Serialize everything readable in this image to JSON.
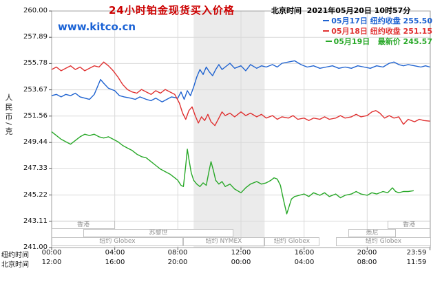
{
  "header": {
    "title": "24小时铂金现货买入价格",
    "datetime": "北京时间  2021年05月20日 10时57分"
  },
  "watermark": "www.kitco.cn",
  "legend": [
    {
      "text": "05月17日 纽约收盘 255.50",
      "color": "#1e62d0"
    },
    {
      "text": "05月18日 纽约收盘 251.15",
      "color": "#e03030"
    },
    {
      "text": "05月19日   最新价 245.57",
      "color": "#28a828"
    }
  ],
  "axis": {
    "y_unit": "人民币/克",
    "y_ticks": [
      "260.00",
      "257.89",
      "255.78",
      "253.67",
      "251.56",
      "249.44",
      "247.33",
      "245.22",
      "243.11",
      "241.00"
    ],
    "x_rows": [
      {
        "name": "纽约时间",
        "labels": [
          "00:00",
          "04:00",
          "08:00",
          "12:00",
          "16:00",
          "20:00",
          "23:59"
        ]
      },
      {
        "name": "北京时间",
        "labels": [
          "12:00",
          "16:00",
          "20:00",
          "00:00",
          "04:00",
          "08:00",
          "11:59"
        ]
      }
    ]
  },
  "sessions": [
    {
      "label": "香港",
      "row": 0,
      "start": 0,
      "end": 4
    },
    {
      "label": "香港",
      "row": 0,
      "start": 21.3,
      "end": 24
    },
    {
      "label": "苏黎世",
      "row": 1,
      "start": 2,
      "end": 11.5
    },
    {
      "label": "悉尼",
      "row": 1,
      "start": 18.8,
      "end": 21.8
    },
    {
      "label": "纽约 Globex",
      "row": 2,
      "start": 0,
      "end": 8.33
    },
    {
      "label": "纽约 NYMEX",
      "row": 2,
      "start": 8.33,
      "end": 13.5
    },
    {
      "label": "纽约 Globex",
      "row": 2,
      "start": 13.5,
      "end": 17
    },
    {
      "label": "纽约 Globex",
      "row": 2,
      "start": 18,
      "end": 24
    }
  ],
  "chart_data": {
    "type": "line",
    "title": "24小时铂金现货买入价格",
    "ylabel": "人民币/克",
    "ylim": [
      241.0,
      260.0
    ],
    "xlim_hours": [
      0,
      24
    ],
    "x_tick_hours": [
      0,
      4,
      8,
      12,
      16,
      20,
      23.983
    ],
    "shaded_band_hours": [
      9.0,
      13.5
    ],
    "grid": true,
    "legend_position": "top-right",
    "series": [
      {
        "id": "0517",
        "name": "05月17日 纽约收盘 255.50",
        "color": "#1e62d0",
        "points": [
          [
            0,
            253.2
          ],
          [
            0.3,
            253.3
          ],
          [
            0.6,
            253.1
          ],
          [
            0.9,
            253.3
          ],
          [
            1.2,
            253.2
          ],
          [
            1.5,
            253.4
          ],
          [
            1.8,
            253.1
          ],
          [
            2.1,
            253.0
          ],
          [
            2.4,
            252.9
          ],
          [
            2.7,
            253.3
          ],
          [
            2.9,
            253.9
          ],
          [
            3.1,
            254.5
          ],
          [
            3.3,
            254.2
          ],
          [
            3.6,
            253.8
          ],
          [
            4,
            253.6
          ],
          [
            4.3,
            253.2
          ],
          [
            4.6,
            253.1
          ],
          [
            5,
            253.0
          ],
          [
            5.3,
            252.9
          ],
          [
            5.6,
            253.1
          ],
          [
            6,
            252.9
          ],
          [
            6.3,
            252.8
          ],
          [
            6.6,
            253.0
          ],
          [
            7,
            252.7
          ],
          [
            7.3,
            252.9
          ],
          [
            7.6,
            253.1
          ],
          [
            8,
            253.0
          ],
          [
            8.2,
            253.5
          ],
          [
            8.4,
            252.9
          ],
          [
            8.6,
            253.6
          ],
          [
            8.8,
            253.2
          ],
          [
            9,
            253.9
          ],
          [
            9.2,
            254.7
          ],
          [
            9.4,
            255.3
          ],
          [
            9.6,
            254.9
          ],
          [
            9.8,
            255.5
          ],
          [
            10,
            255.1
          ],
          [
            10.2,
            254.8
          ],
          [
            10.4,
            255.3
          ],
          [
            10.6,
            255.7
          ],
          [
            10.8,
            255.3
          ],
          [
            11,
            255.5
          ],
          [
            11.3,
            255.8
          ],
          [
            11.6,
            255.4
          ],
          [
            12,
            255.6
          ],
          [
            12.3,
            255.2
          ],
          [
            12.6,
            255.7
          ],
          [
            13,
            255.4
          ],
          [
            13.3,
            255.6
          ],
          [
            13.6,
            255.5
          ],
          [
            14,
            255.7
          ],
          [
            14.3,
            255.5
          ],
          [
            14.6,
            255.8
          ],
          [
            15,
            255.9
          ],
          [
            15.4,
            256.0
          ],
          [
            15.8,
            255.7
          ],
          [
            16.2,
            255.5
          ],
          [
            16.6,
            255.6
          ],
          [
            17,
            255.4
          ],
          [
            17.4,
            255.5
          ],
          [
            17.8,
            255.6
          ],
          [
            18.2,
            255.4
          ],
          [
            18.6,
            255.5
          ],
          [
            19,
            255.4
          ],
          [
            19.4,
            255.6
          ],
          [
            19.8,
            255.5
          ],
          [
            20.2,
            255.4
          ],
          [
            20.6,
            255.6
          ],
          [
            21,
            255.5
          ],
          [
            21.4,
            255.8
          ],
          [
            21.7,
            255.9
          ],
          [
            22,
            255.7
          ],
          [
            22.3,
            255.6
          ],
          [
            22.6,
            255.7
          ],
          [
            23,
            255.6
          ],
          [
            23.4,
            255.5
          ],
          [
            23.7,
            255.6
          ],
          [
            23.98,
            255.5
          ]
        ]
      },
      {
        "id": "0518",
        "name": "05月18日 纽约收盘 251.15",
        "color": "#e03030",
        "points": [
          [
            0,
            255.3
          ],
          [
            0.3,
            255.5
          ],
          [
            0.6,
            255.2
          ],
          [
            0.9,
            255.4
          ],
          [
            1.2,
            255.6
          ],
          [
            1.5,
            255.3
          ],
          [
            1.8,
            255.5
          ],
          [
            2.1,
            255.2
          ],
          [
            2.4,
            255.4
          ],
          [
            2.7,
            255.6
          ],
          [
            3,
            255.5
          ],
          [
            3.3,
            255.9
          ],
          [
            3.6,
            255.6
          ],
          [
            3.9,
            255.2
          ],
          [
            4.2,
            254.7
          ],
          [
            4.5,
            254.1
          ],
          [
            4.8,
            253.7
          ],
          [
            5.1,
            253.5
          ],
          [
            5.4,
            253.4
          ],
          [
            5.7,
            253.7
          ],
          [
            6,
            253.5
          ],
          [
            6.3,
            253.3
          ],
          [
            6.6,
            253.6
          ],
          [
            6.9,
            253.4
          ],
          [
            7.2,
            253.7
          ],
          [
            7.5,
            253.5
          ],
          [
            7.8,
            253.3
          ],
          [
            8.1,
            252.6
          ],
          [
            8.3,
            251.8
          ],
          [
            8.5,
            251.3
          ],
          [
            8.7,
            252.0
          ],
          [
            8.9,
            252.3
          ],
          [
            9.1,
            251.6
          ],
          [
            9.3,
            251.0
          ],
          [
            9.5,
            251.5
          ],
          [
            9.7,
            251.2
          ],
          [
            9.9,
            251.7
          ],
          [
            10.1,
            251.1
          ],
          [
            10.35,
            250.8
          ],
          [
            10.6,
            251.4
          ],
          [
            10.8,
            251.9
          ],
          [
            11,
            251.6
          ],
          [
            11.3,
            251.8
          ],
          [
            11.6,
            251.5
          ],
          [
            12,
            251.9
          ],
          [
            12.3,
            251.6
          ],
          [
            12.6,
            251.8
          ],
          [
            13,
            251.5
          ],
          [
            13.3,
            251.7
          ],
          [
            13.6,
            251.4
          ],
          [
            14,
            251.6
          ],
          [
            14.3,
            251.3
          ],
          [
            14.6,
            251.5
          ],
          [
            15,
            251.4
          ],
          [
            15.3,
            251.6
          ],
          [
            15.6,
            251.3
          ],
          [
            16,
            251.4
          ],
          [
            16.3,
            251.2
          ],
          [
            16.6,
            251.4
          ],
          [
            17,
            251.3
          ],
          [
            17.3,
            251.5
          ],
          [
            17.6,
            251.3
          ],
          [
            18,
            251.4
          ],
          [
            18.3,
            251.6
          ],
          [
            18.6,
            251.4
          ],
          [
            19,
            251.5
          ],
          [
            19.3,
            251.7
          ],
          [
            19.6,
            251.5
          ],
          [
            20,
            251.6
          ],
          [
            20.3,
            251.9
          ],
          [
            20.55,
            252.0
          ],
          [
            20.8,
            251.8
          ],
          [
            21.1,
            251.4
          ],
          [
            21.4,
            251.6
          ],
          [
            21.7,
            251.4
          ],
          [
            22,
            251.5
          ],
          [
            22.3,
            250.9
          ],
          [
            22.6,
            251.3
          ],
          [
            23,
            251.1
          ],
          [
            23.3,
            251.3
          ],
          [
            23.6,
            251.2
          ],
          [
            23.98,
            251.15
          ]
        ]
      },
      {
        "id": "0519",
        "name": "05月19日 最新价 245.57",
        "color": "#28a828",
        "points": [
          [
            0,
            250.3
          ],
          [
            0.3,
            250.0
          ],
          [
            0.6,
            249.7
          ],
          [
            0.9,
            249.5
          ],
          [
            1.2,
            249.3
          ],
          [
            1.5,
            249.6
          ],
          [
            1.8,
            249.9
          ],
          [
            2.1,
            250.1
          ],
          [
            2.4,
            250.0
          ],
          [
            2.7,
            250.1
          ],
          [
            3,
            249.9
          ],
          [
            3.3,
            249.8
          ],
          [
            3.6,
            249.9
          ],
          [
            3.9,
            249.7
          ],
          [
            4.2,
            249.5
          ],
          [
            4.5,
            249.2
          ],
          [
            4.8,
            249.0
          ],
          [
            5.1,
            248.8
          ],
          [
            5.4,
            248.5
          ],
          [
            5.7,
            248.3
          ],
          [
            6,
            248.2
          ],
          [
            6.3,
            247.9
          ],
          [
            6.6,
            247.6
          ],
          [
            6.9,
            247.3
          ],
          [
            7.2,
            247.1
          ],
          [
            7.5,
            246.9
          ],
          [
            7.8,
            246.6
          ],
          [
            8,
            246.4
          ],
          [
            8.2,
            246.0
          ],
          [
            8.35,
            245.9
          ],
          [
            8.5,
            247.6
          ],
          [
            8.6,
            248.9
          ],
          [
            8.7,
            248.1
          ],
          [
            8.85,
            247.0
          ],
          [
            9,
            246.4
          ],
          [
            9.2,
            246.1
          ],
          [
            9.4,
            245.9
          ],
          [
            9.6,
            246.2
          ],
          [
            9.8,
            246.0
          ],
          [
            10,
            247.3
          ],
          [
            10.1,
            247.9
          ],
          [
            10.25,
            247.2
          ],
          [
            10.4,
            246.4
          ],
          [
            10.6,
            246.1
          ],
          [
            10.8,
            246.3
          ],
          [
            11,
            245.9
          ],
          [
            11.3,
            246.1
          ],
          [
            11.6,
            245.7
          ],
          [
            12,
            245.4
          ],
          [
            12.3,
            245.8
          ],
          [
            12.6,
            246.1
          ],
          [
            13,
            246.3
          ],
          [
            13.3,
            246.1
          ],
          [
            13.6,
            246.2
          ],
          [
            13.9,
            246.4
          ],
          [
            14.1,
            246.6
          ],
          [
            14.3,
            246.5
          ],
          [
            14.5,
            246.0
          ],
          [
            14.7,
            244.8
          ],
          [
            14.9,
            243.7
          ],
          [
            15.05,
            244.3
          ],
          [
            15.2,
            244.9
          ],
          [
            15.4,
            245.1
          ],
          [
            15.7,
            245.2
          ],
          [
            16,
            245.3
          ],
          [
            16.3,
            245.1
          ],
          [
            16.6,
            245.4
          ],
          [
            17,
            245.2
          ],
          [
            17.3,
            245.4
          ],
          [
            17.6,
            245.1
          ],
          [
            18,
            245.3
          ],
          [
            18.3,
            245.0
          ],
          [
            18.6,
            245.2
          ],
          [
            19,
            245.3
          ],
          [
            19.3,
            245.5
          ],
          [
            19.6,
            245.3
          ],
          [
            20,
            245.2
          ],
          [
            20.3,
            245.4
          ],
          [
            20.6,
            245.3
          ],
          [
            21,
            245.5
          ],
          [
            21.3,
            245.4
          ],
          [
            21.6,
            245.8
          ],
          [
            21.8,
            245.5
          ],
          [
            22,
            245.4
          ],
          [
            22.3,
            245.5
          ],
          [
            22.6,
            245.5
          ],
          [
            22.95,
            245.57
          ]
        ]
      }
    ]
  }
}
